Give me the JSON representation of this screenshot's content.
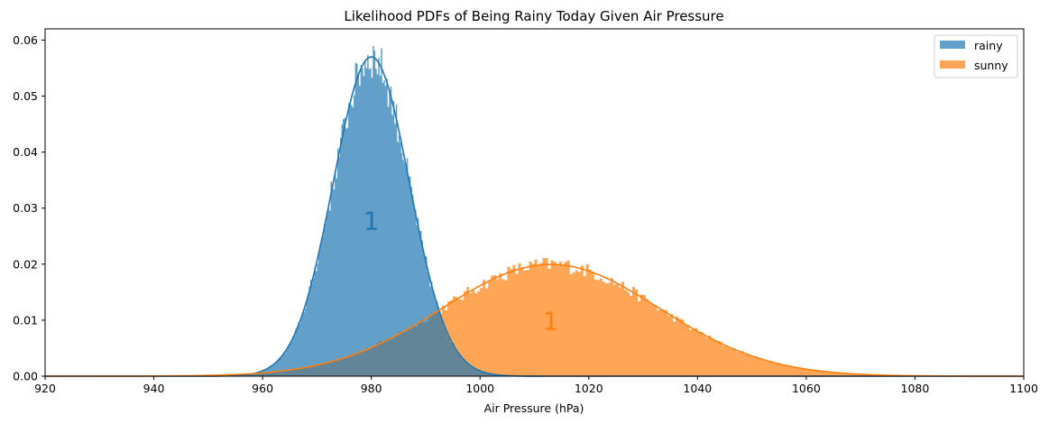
{
  "chart_data": {
    "type": "histogram",
    "title": "Likelihood PDFs of Being Rainy Today Given Air Pressure",
    "xlabel": "Air Pressure (hPa)",
    "ylabel": "",
    "xlim": [
      920,
      1100
    ],
    "ylim": [
      0,
      0.062
    ],
    "xticks": [
      920,
      940,
      960,
      980,
      1000,
      1020,
      1040,
      1060,
      1080,
      1100
    ],
    "yticks": [
      0.0,
      0.01,
      0.02,
      0.03,
      0.04,
      0.05,
      0.06
    ],
    "ytick_labels": [
      "0.00",
      "0.01",
      "0.02",
      "0.03",
      "0.04",
      "0.05",
      "0.06"
    ],
    "legend_position": "top-right",
    "series": [
      {
        "name": "rainy",
        "color": "#1f77b4",
        "hist_alpha": 0.7,
        "mean": 980,
        "std": 7.0,
        "bin_width": 0.25,
        "range": [
          955,
          1003
        ],
        "peak_density": 0.057
      },
      {
        "name": "sunny",
        "color": "#ff7f0e",
        "hist_alpha": 0.7,
        "mean": 1013,
        "std": 20.0,
        "bin_width": 0.5,
        "range": [
          940,
          1085
        ],
        "peak_density": 0.02
      }
    ],
    "annotations": [
      {
        "text": "1",
        "x": 980,
        "y": 0.0262,
        "color": "#1f77b4"
      },
      {
        "text": "1",
        "x": 1013,
        "y": 0.0083,
        "color": "#ff7f0e"
      }
    ]
  }
}
